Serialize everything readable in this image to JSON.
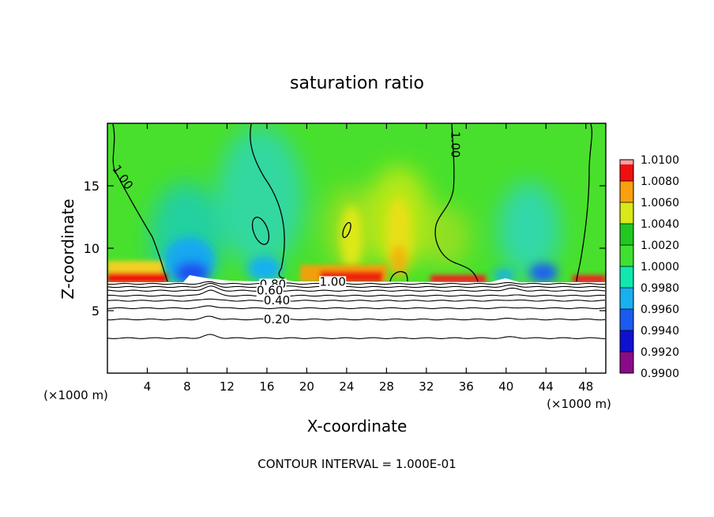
{
  "chart_data": {
    "type": "heatmap",
    "title": "saturation ratio",
    "xlabel": "X-coordinate",
    "ylabel": "Z-coordinate",
    "x_units_left": "(×1000 m)",
    "x_units_right": "(×1000 m)",
    "footer": "CONTOUR INTERVAL = 1.000E-01",
    "xlim": [
      0,
      50
    ],
    "ylim": [
      0,
      20
    ],
    "x_ticks": [
      4,
      8,
      12,
      16,
      20,
      24,
      28,
      32,
      36,
      40,
      44,
      48
    ],
    "y_ticks": [
      5,
      10,
      15
    ],
    "colorbar": {
      "min": 0.99,
      "max": 1.01,
      "tick_values": [
        0.99,
        0.992,
        0.994,
        0.996,
        0.998,
        1.0,
        1.002,
        1.004,
        1.006,
        1.008,
        1.01
      ],
      "tick_labels": [
        "0.9900",
        "0.9920",
        "0.9940",
        "0.9960",
        "0.9980",
        "1.0000",
        "1.0020",
        "1.0040",
        "1.0060",
        "1.0080",
        "1.0100"
      ],
      "colors": [
        "#8a0a8a",
        "#1010d0",
        "#1a5cf0",
        "#18b0f0",
        "#10e8b0",
        "#40e030",
        "#20c820",
        "#d8e818",
        "#f8a010",
        "#f01010",
        "#f8a0a0"
      ]
    },
    "cloud_base_z": 7.2,
    "contour_labels": [
      {
        "text": "1.00",
        "x": 1.2,
        "z": 15.5,
        "rotate": 55
      },
      {
        "text": "1.00",
        "x": 34.5,
        "z": 18.3,
        "rotate": 90
      },
      {
        "text": "1.00",
        "x": 22.6,
        "z": 7.0,
        "rotate": 0
      },
      {
        "text": "0.80",
        "x": 16.6,
        "z": 6.8,
        "rotate": 0
      },
      {
        "text": "0.60",
        "x": 16.3,
        "z": 6.3,
        "rotate": 0
      },
      {
        "text": "0.40",
        "x": 17.0,
        "z": 5.5,
        "rotate": 0
      },
      {
        "text": "0.20",
        "x": 17.0,
        "z": 4.0,
        "rotate": 0
      }
    ],
    "sub_cloud_contours_z": [
      2.8,
      4.3,
      5.2,
      5.8,
      6.2,
      6.6,
      6.9,
      7.15
    ]
  }
}
